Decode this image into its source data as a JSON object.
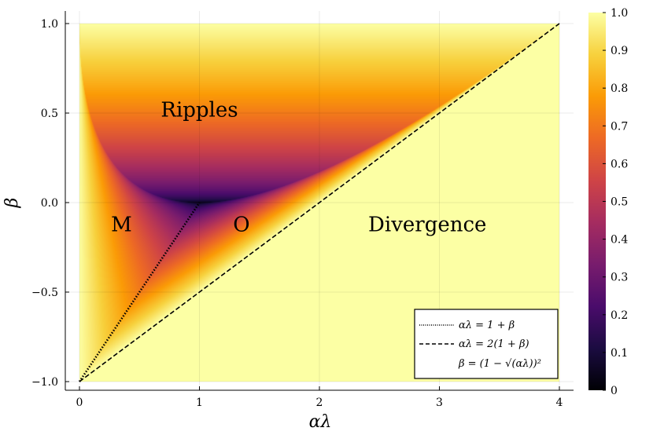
{
  "chart_data": {
    "type": "heatmap",
    "title": "",
    "xlabel": "αλ",
    "ylabel": "β",
    "xlim": [
      0,
      4
    ],
    "ylim": [
      -1,
      1
    ],
    "x_ticks": [
      "0",
      "1",
      "2",
      "3",
      "4"
    ],
    "y_ticks": [
      "−1.0",
      "−0.5",
      "0.0",
      "0.5",
      "1.0"
    ],
    "colorbar": {
      "min": 0,
      "max": 1,
      "ticks": [
        "0",
        "0.1",
        "0.2",
        "0.3",
        "0.4",
        "0.5",
        "0.6",
        "0.7",
        "0.8",
        "0.9",
        "1.0"
      ],
      "colormap": "inferno-like",
      "colors": [
        "#000004",
        "#1b0c41",
        "#4a0c6b",
        "#781c6d",
        "#a52c60",
        "#cf4446",
        "#ed6925",
        "#fb9b06",
        "#f7d13d",
        "#fcffa4"
      ]
    },
    "field": "convergence rate max(|r1|,|r2|) of heavy-ball iteration; yellow (1.0) where divergent",
    "regions": [
      {
        "label": "Ripples",
        "x": 1.0,
        "y": 0.48
      },
      {
        "label": "M",
        "x": 0.35,
        "y": -0.16
      },
      {
        "label": "O",
        "x": 1.35,
        "y": -0.16
      },
      {
        "label": "Divergence",
        "x": 2.9,
        "y": -0.16
      }
    ],
    "curves": [
      {
        "name": "αλ = 1 + β",
        "style": "dotted",
        "color": "#000000",
        "x": [
          0,
          1
        ],
        "y": [
          -1,
          0
        ]
      },
      {
        "name": "αλ = 2(1 + β)",
        "style": "dashed",
        "color": "#000000",
        "x": [
          0,
          4
        ],
        "y": [
          -1,
          1
        ]
      },
      {
        "name": "β = (1 − √(αλ))²",
        "style": "none",
        "color": "#000000"
      }
    ],
    "legend_position": "bottom-right",
    "grid": true
  }
}
